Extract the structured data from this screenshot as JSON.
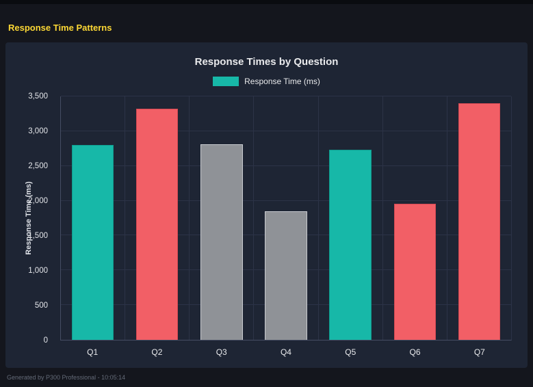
{
  "header": {
    "title": "Response Time Patterns"
  },
  "footer": {
    "text": "Generated by P300 Professional - 10:05:14"
  },
  "colors": {
    "page_bg": "#14161d",
    "panel_bg": "#1e2534",
    "title_yellow": "#fdd835",
    "teal": "#17b8a8",
    "red": "#f25f66",
    "gray": "#8f9297",
    "gridline": "#2c3347",
    "axis_line": "#454d63",
    "text": "#e9eaec"
  },
  "chart_data": {
    "type": "bar",
    "title": "Response Times by Question",
    "legend": "Response Time (ms)",
    "legend_position": "top",
    "xlabel": "",
    "ylabel": "Response Time (ms)",
    "categories": [
      "Q1",
      "Q2",
      "Q3",
      "Q4",
      "Q5",
      "Q6",
      "Q7"
    ],
    "values": [
      2800,
      3320,
      2810,
      1850,
      2730,
      1960,
      3400
    ],
    "bar_colors": [
      "#17b8a8",
      "#f25f66",
      "#8f9297",
      "#8f9297",
      "#17b8a8",
      "#f25f66",
      "#f25f66"
    ],
    "bar_border_colors": [
      "#0f9c8e",
      "#d44a53",
      "#c9cbd0",
      "#c9cbd0",
      "#0f9c8e",
      "#d44a53",
      "#d44a53"
    ],
    "ylim": [
      0,
      3500
    ],
    "grid": true,
    "yticks": [
      {
        "value": 0,
        "label": "0"
      },
      {
        "value": 500,
        "label": "500"
      },
      {
        "value": 1000,
        "label": "1,000"
      },
      {
        "value": 1500,
        "label": "1,500"
      },
      {
        "value": 2000,
        "label": "2,000"
      },
      {
        "value": 2500,
        "label": "2,500"
      },
      {
        "value": 3000,
        "label": "3,000"
      },
      {
        "value": 3500,
        "label": "3,500"
      }
    ]
  }
}
